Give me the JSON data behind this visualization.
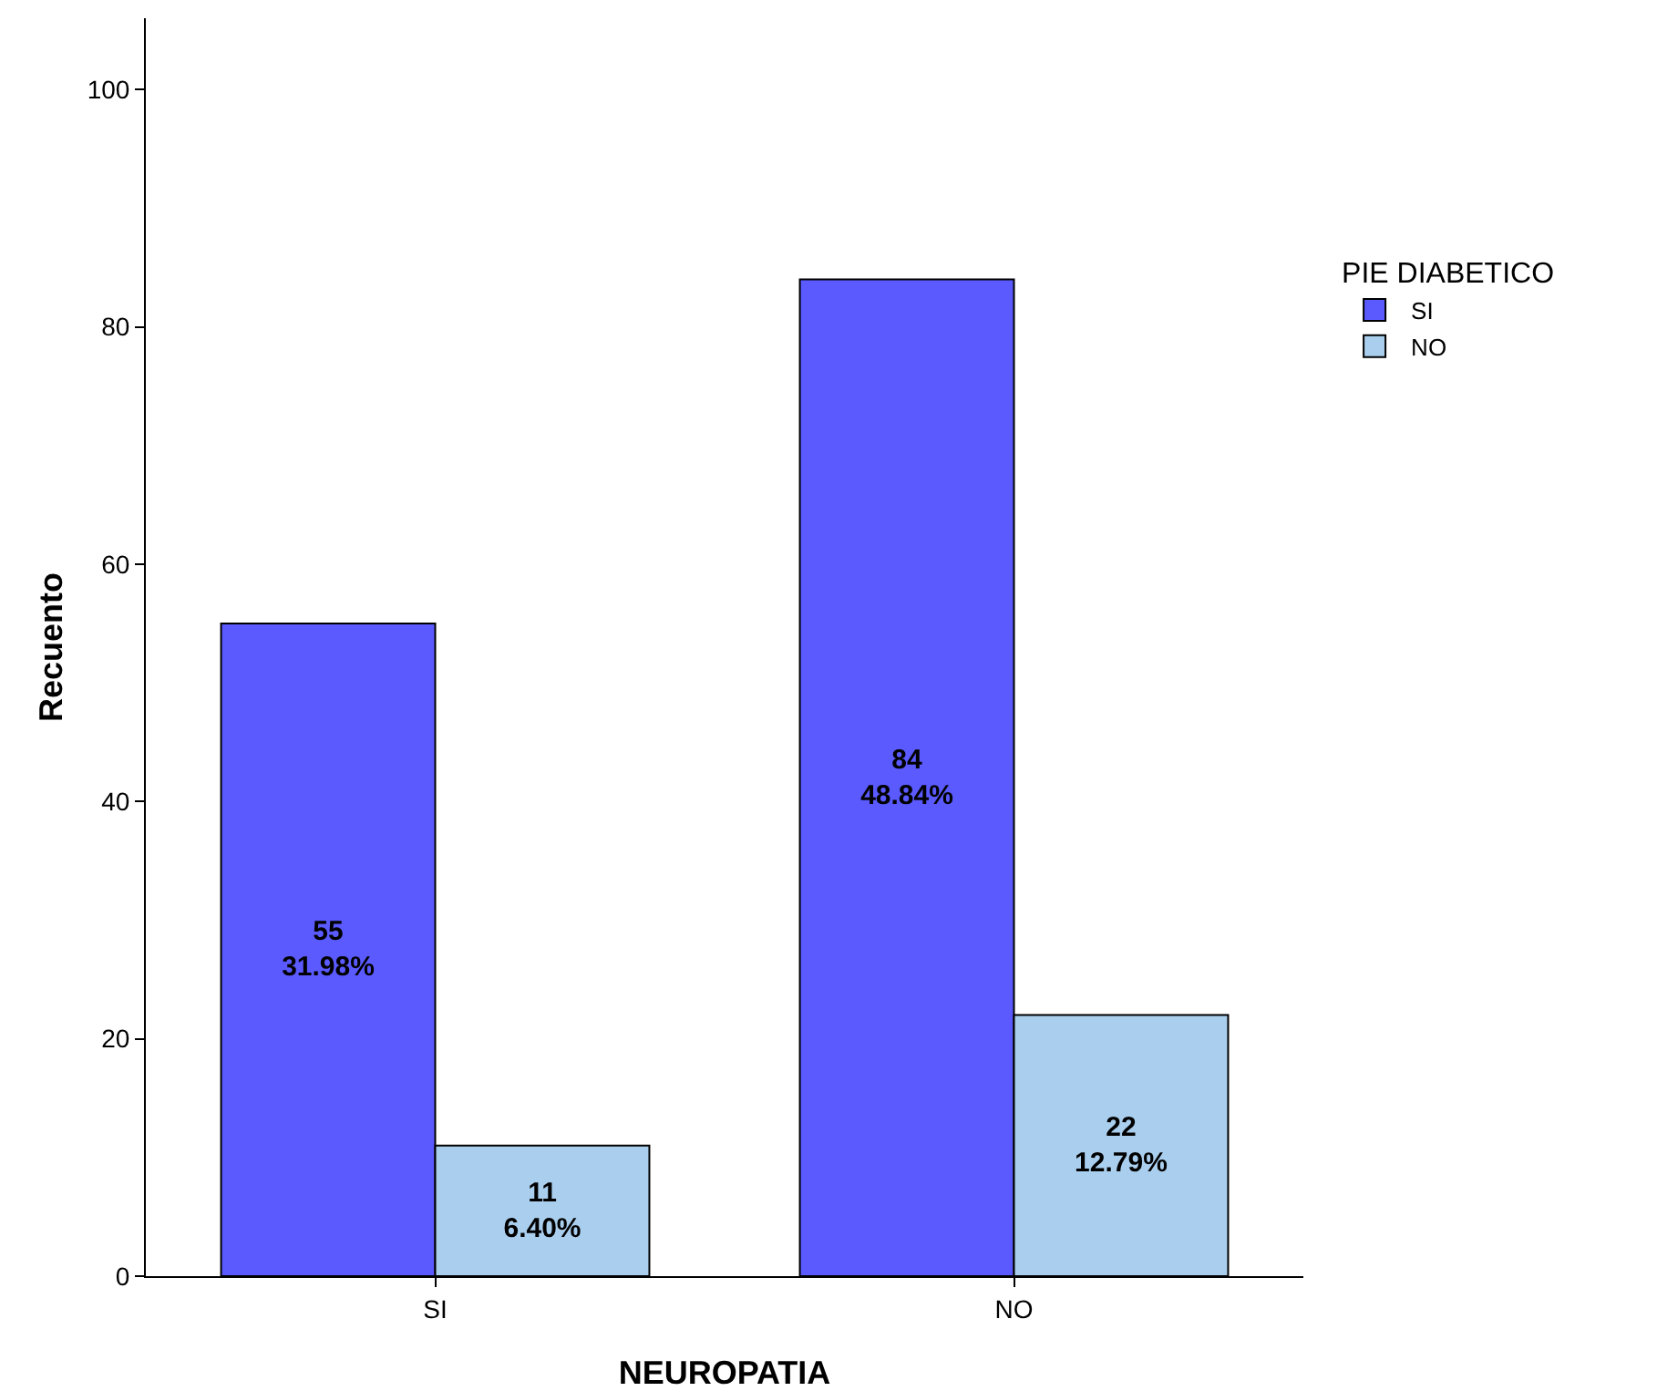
{
  "chart_data": {
    "type": "bar",
    "xlabel": "NEUROPATIA",
    "ylabel": "Recuento",
    "legend_title": "PIE DIABETICO",
    "categories": [
      "SI",
      "NO"
    ],
    "series": [
      {
        "name": "SI",
        "color": "#5a5aff",
        "values": [
          55,
          84
        ],
        "value_labels": [
          "55\n31.98%",
          "84\n48.84%"
        ]
      },
      {
        "name": "NO",
        "color": "#aacfee",
        "values": [
          11,
          22
        ],
        "value_labels": [
          "11\n6.40%",
          "22\n12.79%"
        ]
      }
    ],
    "ylim": [
      0,
      106
    ],
    "yticks": [
      0,
      20,
      40,
      60,
      80,
      100
    ],
    "grid": false,
    "legend": "right"
  }
}
